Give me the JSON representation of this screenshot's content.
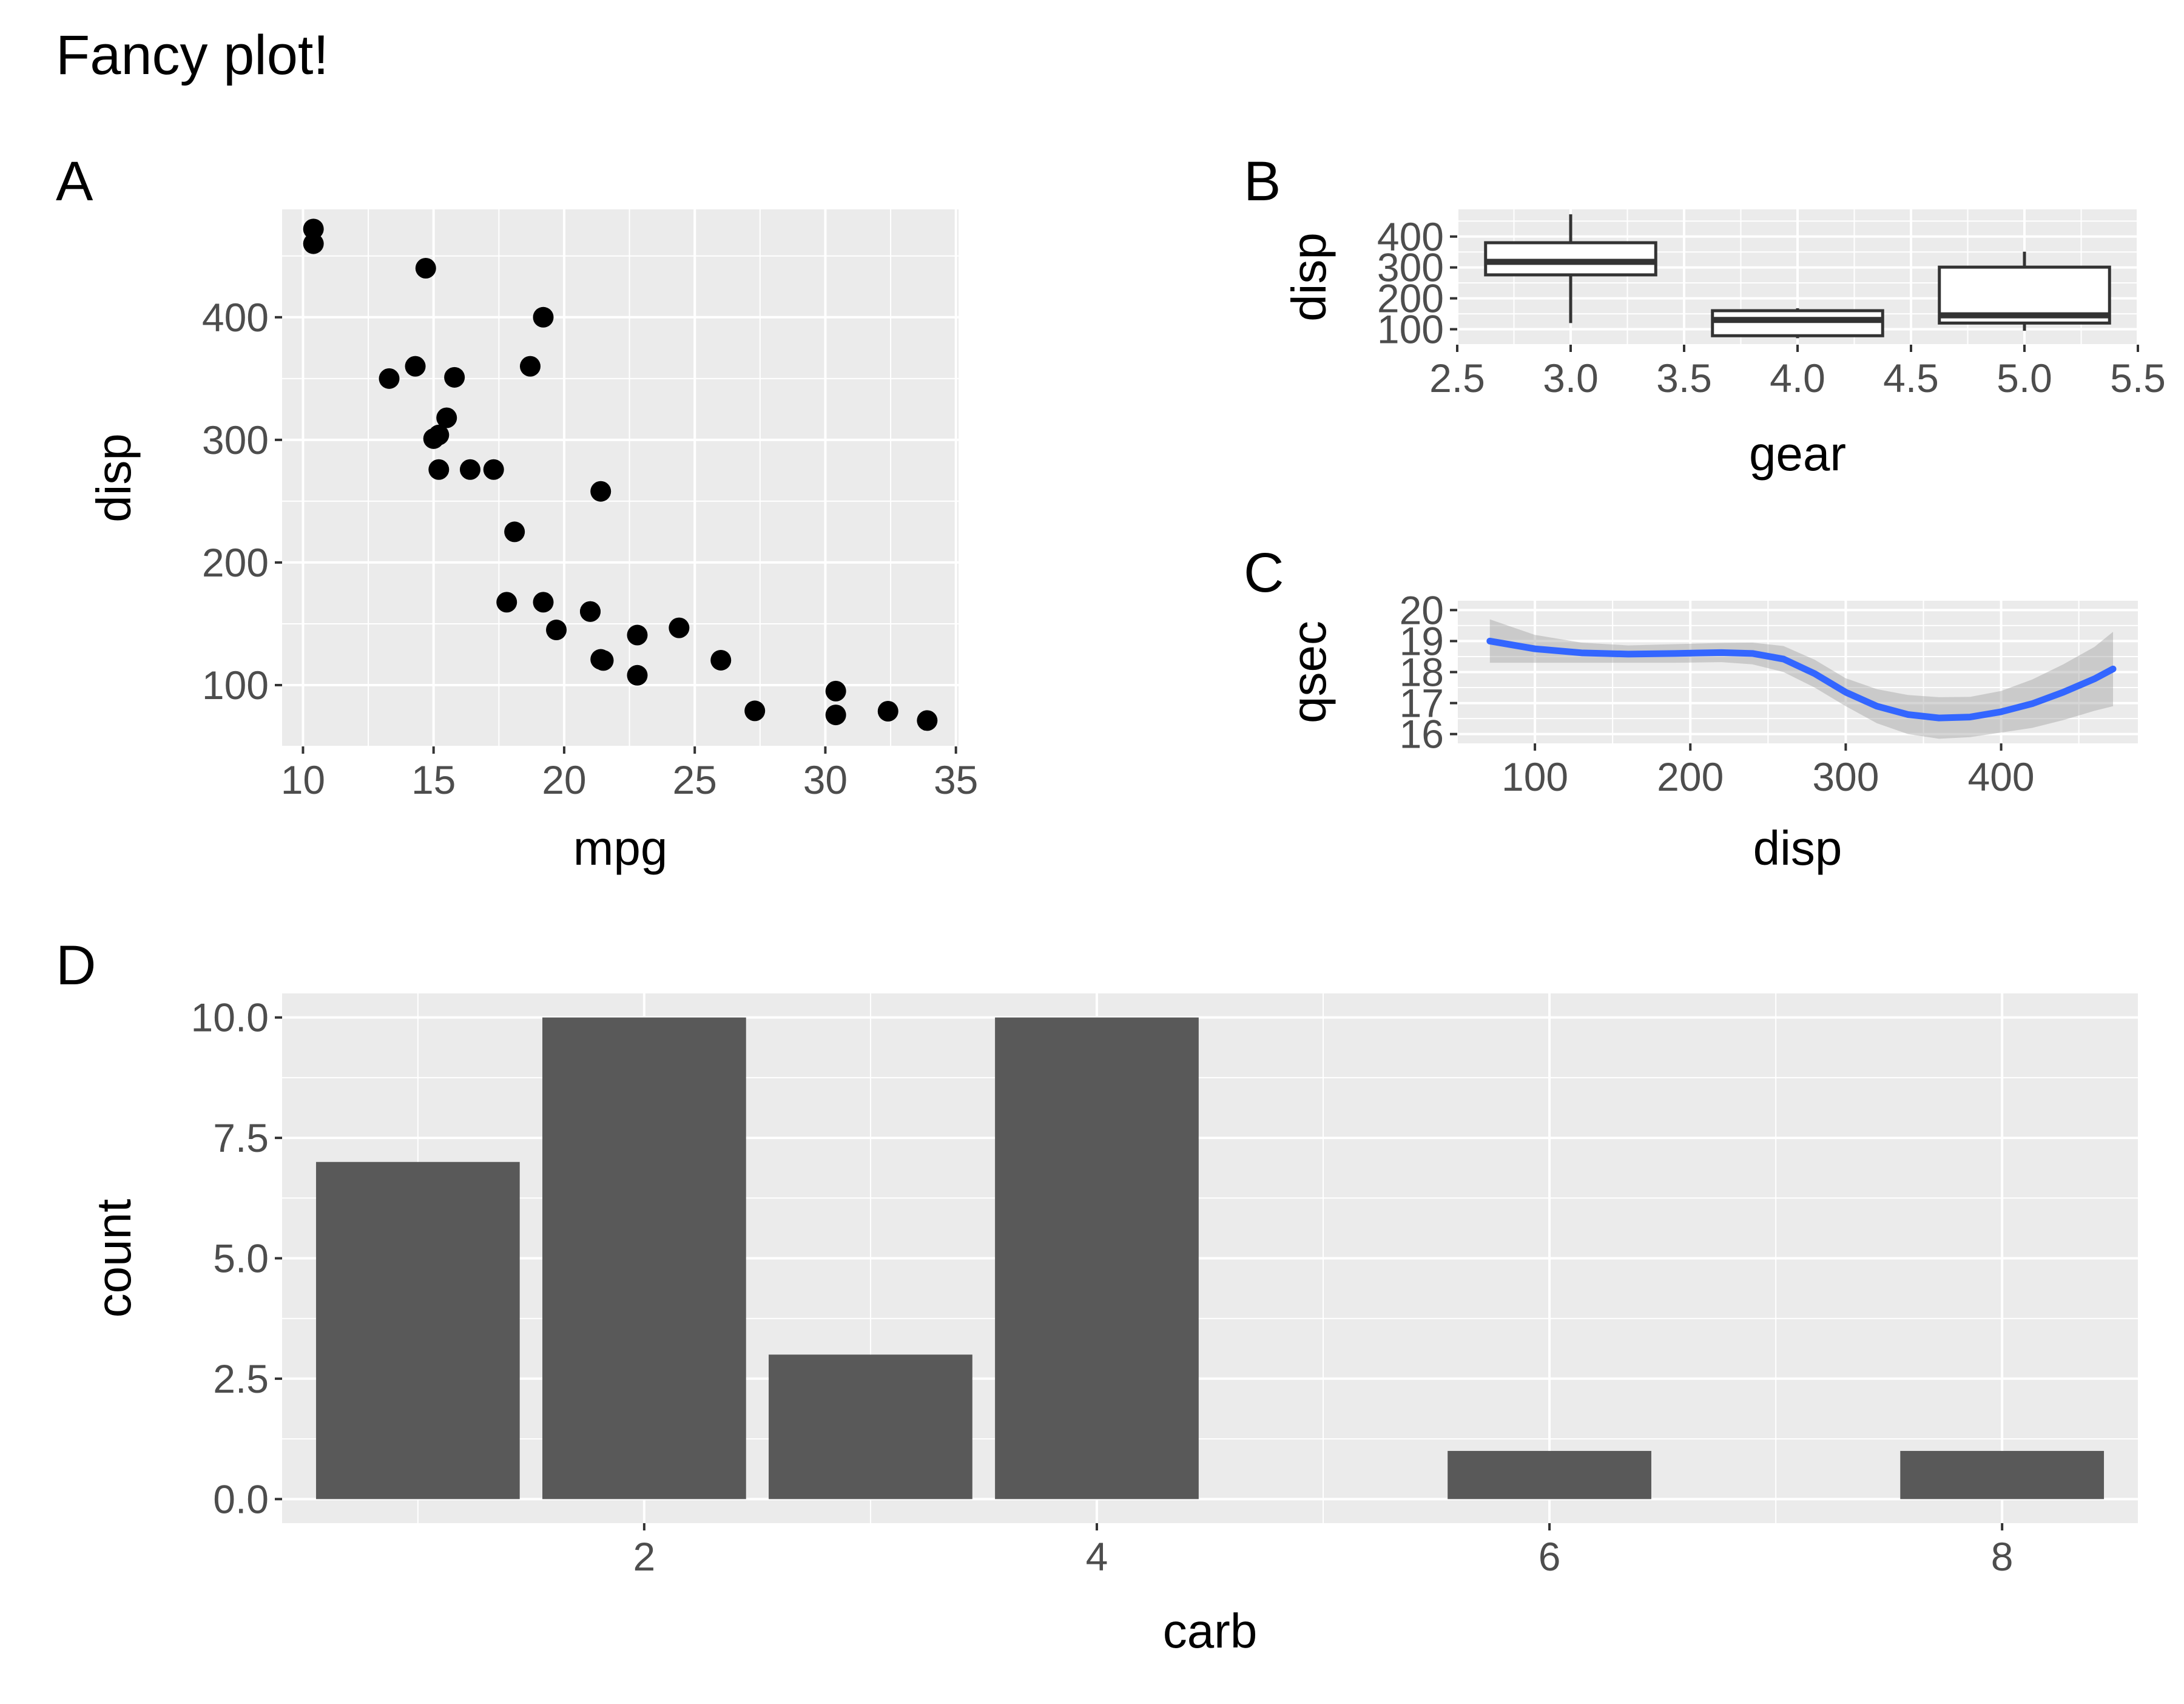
{
  "title": "Fancy plot!",
  "chart_data": [
    {
      "tag": "A",
      "type": "scatter",
      "xlabel": "mpg",
      "ylabel": "disp",
      "xlim": [
        9.2,
        35.1
      ],
      "ylim": [
        50,
        488
      ],
      "xticks": [
        10,
        15,
        20,
        25,
        30,
        35
      ],
      "xtick_labels": [
        "10",
        "15",
        "20",
        "25",
        "30",
        "35"
      ],
      "yticks": [
        100,
        200,
        300,
        400
      ],
      "ytick_labels": [
        "100",
        "200",
        "300",
        "400"
      ],
      "grid": true,
      "points": [
        [
          21.0,
          160
        ],
        [
          21.0,
          160
        ],
        [
          22.8,
          108
        ],
        [
          21.4,
          258
        ],
        [
          18.7,
          360
        ],
        [
          18.1,
          225
        ],
        [
          14.3,
          360
        ],
        [
          24.4,
          146.7
        ],
        [
          22.8,
          140.8
        ],
        [
          19.2,
          167.6
        ],
        [
          17.8,
          167.6
        ],
        [
          16.4,
          275.8
        ],
        [
          17.3,
          275.8
        ],
        [
          15.2,
          275.8
        ],
        [
          10.4,
          472
        ],
        [
          10.4,
          460
        ],
        [
          14.7,
          440
        ],
        [
          32.4,
          78.7
        ],
        [
          30.4,
          75.7
        ],
        [
          33.9,
          71.1
        ],
        [
          21.5,
          120.1
        ],
        [
          15.5,
          318
        ],
        [
          15.2,
          304
        ],
        [
          13.3,
          350
        ],
        [
          19.2,
          400
        ],
        [
          27.3,
          79
        ],
        [
          26.0,
          120.3
        ],
        [
          30.4,
          95.1
        ],
        [
          15.8,
          351
        ],
        [
          19.7,
          145
        ],
        [
          15.0,
          301
        ],
        [
          21.4,
          121
        ]
      ],
      "point_color": "#000000"
    },
    {
      "tag": "B",
      "type": "boxplot",
      "xlabel": "gear",
      "ylabel": "disp",
      "xlim": [
        2.5,
        5.5
      ],
      "ylim": [
        50,
        488
      ],
      "xticks": [
        2.5,
        3.0,
        3.5,
        4.0,
        4.5,
        5.0,
        5.5
      ],
      "xtick_labels": [
        "2.5",
        "3.0",
        "3.5",
        "4.0",
        "4.5",
        "5.0",
        "5.5"
      ],
      "yticks": [
        100,
        200,
        300,
        400
      ],
      "ytick_labels": [
        "100",
        "200",
        "300",
        "400"
      ],
      "grid": true,
      "boxes": [
        {
          "x": 3,
          "low": 120,
          "q1": 276,
          "median": 318,
          "q3": 380,
          "high": 472
        },
        {
          "x": 4,
          "low": 71,
          "q1": 79,
          "median": 130,
          "q3": 160,
          "high": 168
        },
        {
          "x": 5,
          "low": 95,
          "q1": 120,
          "median": 145,
          "q3": 301,
          "high": 351
        }
      ]
    },
    {
      "tag": "C",
      "type": "line",
      "xlabel": "disp",
      "ylabel": "qsec",
      "xlim": [
        50,
        488
      ],
      "ylim": [
        15.7,
        20.3
      ],
      "xticks": [
        100,
        200,
        300,
        400
      ],
      "xtick_labels": [
        "100",
        "200",
        "300",
        "400"
      ],
      "yticks": [
        16,
        17,
        18,
        19,
        20
      ],
      "ytick_labels": [
        "16",
        "17",
        "18",
        "19",
        "20"
      ],
      "grid": true,
      "series": [
        {
          "color": "#3366ff",
          "x": [
            71,
            100,
            130,
            160,
            190,
            220,
            240,
            260,
            280,
            300,
            320,
            340,
            360,
            380,
            400,
            420,
            440,
            460,
            472
          ],
          "y": [
            19.0,
            18.75,
            18.62,
            18.58,
            18.6,
            18.63,
            18.6,
            18.42,
            17.95,
            17.35,
            16.9,
            16.63,
            16.52,
            16.55,
            16.72,
            16.98,
            17.35,
            17.78,
            18.1
          ],
          "lower": [
            18.3,
            18.3,
            18.3,
            18.3,
            18.3,
            18.32,
            18.25,
            18.0,
            17.5,
            16.9,
            16.35,
            16.0,
            15.85,
            15.9,
            16.05,
            16.2,
            16.45,
            16.75,
            16.9
          ],
          "upper": [
            19.7,
            19.2,
            18.95,
            18.86,
            18.9,
            18.94,
            18.95,
            18.84,
            18.4,
            17.8,
            17.45,
            17.26,
            17.19,
            17.2,
            17.39,
            17.76,
            18.25,
            18.81,
            19.3
          ]
        }
      ]
    },
    {
      "tag": "D",
      "type": "bar",
      "xlabel": "carb",
      "ylabel": "count",
      "xlim": [
        0.4,
        8.6
      ],
      "ylim": [
        -0.5,
        10.5
      ],
      "xticks": [
        2,
        4,
        6,
        8
      ],
      "xtick_labels": [
        "2",
        "4",
        "6",
        "8"
      ],
      "yticks": [
        0.0,
        2.5,
        5.0,
        7.5,
        10.0
      ],
      "ytick_labels": [
        "0.0",
        "2.5",
        "5.0",
        "7.5",
        "10.0"
      ],
      "grid": true,
      "categories": [
        1,
        2,
        3,
        4,
        6,
        8
      ],
      "values": [
        7,
        10,
        3,
        10,
        1,
        1
      ],
      "bar_color": "#595959"
    }
  ]
}
